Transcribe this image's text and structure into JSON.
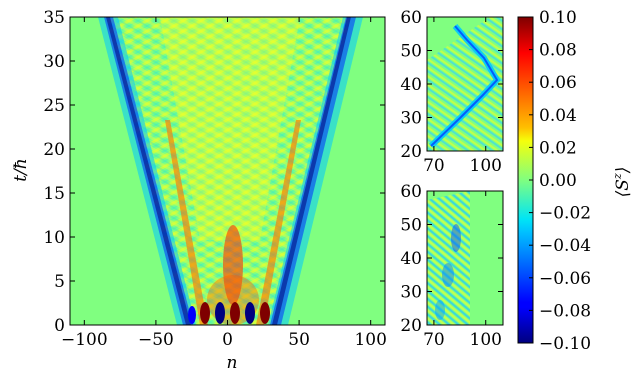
{
  "chart_data": [
    {
      "panel": "main",
      "type": "heatmap",
      "xlabel": "n",
      "ylabel": "t/ħ",
      "xlim": [
        -110,
        110
      ],
      "ylim": [
        0,
        35
      ],
      "xticks": [
        -100,
        -50,
        0,
        50,
        100
      ],
      "yticks": [
        0,
        5,
        10,
        15,
        20,
        25,
        30,
        35
      ],
      "xtick_labels": [
        "−100",
        "−50",
        "0",
        "50",
        "100"
      ],
      "ytick_labels": [
        "0",
        "5",
        "10",
        "15",
        "20",
        "25",
        "30",
        "35"
      ]
    },
    {
      "panel": "inset-top",
      "type": "heatmap",
      "xlim": [
        66,
        110
      ],
      "ylim": [
        20,
        60
      ],
      "xticks": [
        70,
        100
      ],
      "yticks": [
        20,
        30,
        40,
        50,
        60
      ],
      "xtick_labels": [
        "70",
        "100"
      ],
      "ytick_labels": [
        "20",
        "30",
        "40",
        "50",
        "60"
      ]
    },
    {
      "panel": "inset-bottom",
      "type": "heatmap",
      "xlim": [
        66,
        110
      ],
      "ylim": [
        20,
        60
      ],
      "xticks": [
        70,
        100
      ],
      "yticks": [
        20,
        30,
        40,
        50,
        60
      ],
      "xtick_labels": [
        "70",
        "100"
      ],
      "ytick_labels": [
        "20",
        "30",
        "40",
        "50",
        "60"
      ]
    }
  ],
  "colorbar": {
    "label": "⟨S",
    "label_sup": "z",
    "label_end": "⟩",
    "vmin": -0.1,
    "vmax": 0.1,
    "ticks": [
      0.1,
      0.08,
      0.06,
      0.04,
      0.02,
      0.0,
      -0.02,
      -0.04,
      -0.06,
      -0.08,
      -0.1
    ],
    "tick_labels": [
      "0.10",
      "0.08",
      "0.06",
      "0.04",
      "0.02",
      "0.00",
      "−0.02",
      "−0.04",
      "−0.06",
      "−0.08",
      "−0.10"
    ],
    "colormap": "jet",
    "background_color": "#80ff80"
  }
}
